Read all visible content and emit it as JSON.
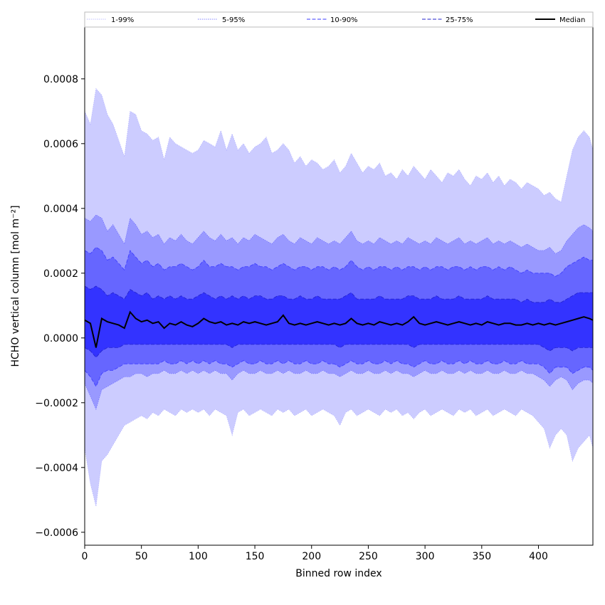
{
  "chart_data": {
    "type": "area",
    "title": "",
    "xlabel": "Binned row index",
    "ylabel": "HCHO vertical column [mol m⁻²]",
    "xlim": [
      0,
      448
    ],
    "ylim": [
      -0.00064,
      0.00096
    ],
    "xticks": [
      0,
      50,
      100,
      150,
      200,
      250,
      300,
      350,
      400
    ],
    "xtick_labels": [
      "0",
      "50",
      "100",
      "150",
      "200",
      "250",
      "300",
      "350",
      "400"
    ],
    "yticks": [
      -0.0006,
      -0.0004,
      -0.0002,
      0.0,
      0.0002,
      0.0004,
      0.0006,
      0.0008
    ],
    "ytick_labels": [
      "−0.0006",
      "−0.0004",
      "−0.0002",
      "0.0000",
      "0.0002",
      "0.0004",
      "0.0006",
      "0.0008"
    ],
    "grid": false,
    "legend_position": "top",
    "x": [
      0,
      5,
      10,
      15,
      20,
      25,
      30,
      35,
      40,
      45,
      50,
      55,
      60,
      65,
      70,
      75,
      80,
      85,
      90,
      95,
      100,
      105,
      110,
      115,
      120,
      125,
      130,
      135,
      140,
      145,
      150,
      155,
      160,
      165,
      170,
      175,
      180,
      185,
      190,
      195,
      200,
      205,
      210,
      215,
      220,
      225,
      230,
      235,
      240,
      245,
      250,
      255,
      260,
      265,
      270,
      275,
      280,
      285,
      290,
      295,
      300,
      305,
      310,
      315,
      320,
      325,
      330,
      335,
      340,
      345,
      350,
      355,
      360,
      365,
      370,
      375,
      380,
      385,
      390,
      395,
      400,
      405,
      410,
      415,
      420,
      425,
      430,
      435,
      440,
      445,
      448
    ],
    "series": [
      {
        "name": "1-99%",
        "color": "#ccccff",
        "line_color": "#b0b0ff",
        "line_style": "dotted",
        "upper": [
          0.0007,
          0.00066,
          0.00077,
          0.00075,
          0.00069,
          0.00066,
          0.00061,
          0.00056,
          0.0007,
          0.00069,
          0.00064,
          0.00063,
          0.00061,
          0.00062,
          0.00055,
          0.00062,
          0.0006,
          0.00059,
          0.00058,
          0.00057,
          0.00058,
          0.00061,
          0.0006,
          0.00059,
          0.00064,
          0.00058,
          0.00063,
          0.00058,
          0.0006,
          0.00057,
          0.00059,
          0.0006,
          0.00062,
          0.00057,
          0.00058,
          0.0006,
          0.00058,
          0.00054,
          0.00056,
          0.00053,
          0.00055,
          0.00054,
          0.00052,
          0.00053,
          0.00055,
          0.00051,
          0.00053,
          0.00057,
          0.00054,
          0.00051,
          0.00053,
          0.00052,
          0.00054,
          0.0005,
          0.00051,
          0.00049,
          0.00052,
          0.0005,
          0.00053,
          0.00051,
          0.00049,
          0.00052,
          0.0005,
          0.00048,
          0.00051,
          0.0005,
          0.00052,
          0.00049,
          0.00047,
          0.0005,
          0.00049,
          0.00051,
          0.00048,
          0.0005,
          0.00047,
          0.00049,
          0.00048,
          0.00046,
          0.00048,
          0.00047,
          0.00046,
          0.00044,
          0.00045,
          0.00043,
          0.00042,
          0.0005,
          0.00058,
          0.00062,
          0.00064,
          0.00062,
          0.00058
        ],
        "lower": [
          -0.00034,
          -0.00045,
          -0.00052,
          -0.00038,
          -0.00036,
          -0.00033,
          -0.0003,
          -0.00027,
          -0.00026,
          -0.00025,
          -0.00024,
          -0.00025,
          -0.00023,
          -0.00024,
          -0.00022,
          -0.00023,
          -0.00024,
          -0.00022,
          -0.00023,
          -0.00022,
          -0.00023,
          -0.00022,
          -0.00024,
          -0.00022,
          -0.00023,
          -0.00024,
          -0.0003,
          -0.00023,
          -0.00022,
          -0.00024,
          -0.00023,
          -0.00022,
          -0.00023,
          -0.00024,
          -0.00022,
          -0.00023,
          -0.00022,
          -0.00024,
          -0.00023,
          -0.00022,
          -0.00024,
          -0.00023,
          -0.00022,
          -0.00023,
          -0.00024,
          -0.00027,
          -0.00023,
          -0.00022,
          -0.00024,
          -0.00023,
          -0.00022,
          -0.00023,
          -0.00024,
          -0.00022,
          -0.00023,
          -0.00022,
          -0.00024,
          -0.00023,
          -0.00025,
          -0.00023,
          -0.00022,
          -0.00024,
          -0.00023,
          -0.00022,
          -0.00023,
          -0.00024,
          -0.00022,
          -0.00023,
          -0.00022,
          -0.00024,
          -0.00023,
          -0.00022,
          -0.00024,
          -0.00023,
          -0.00022,
          -0.00023,
          -0.00024,
          -0.00022,
          -0.00023,
          -0.00024,
          -0.00026,
          -0.00028,
          -0.00034,
          -0.0003,
          -0.00028,
          -0.0003,
          -0.00038,
          -0.00034,
          -0.00032,
          -0.0003,
          -0.00034
        ]
      },
      {
        "name": "5-95%",
        "color": "#9999ff",
        "line_color": "#6a6aff",
        "line_style": "dotted",
        "upper": [
          0.00037,
          0.00036,
          0.00038,
          0.00037,
          0.00033,
          0.00035,
          0.00032,
          0.00029,
          0.00037,
          0.00035,
          0.00032,
          0.00033,
          0.00031,
          0.00032,
          0.00029,
          0.00031,
          0.0003,
          0.00032,
          0.0003,
          0.00029,
          0.00031,
          0.00033,
          0.00031,
          0.0003,
          0.00032,
          0.0003,
          0.00031,
          0.00029,
          0.00031,
          0.0003,
          0.00032,
          0.00031,
          0.0003,
          0.00029,
          0.00031,
          0.00032,
          0.0003,
          0.00029,
          0.00031,
          0.0003,
          0.00029,
          0.00031,
          0.0003,
          0.00029,
          0.0003,
          0.00029,
          0.00031,
          0.00033,
          0.0003,
          0.00029,
          0.0003,
          0.00029,
          0.00031,
          0.0003,
          0.00029,
          0.0003,
          0.00029,
          0.00031,
          0.0003,
          0.00029,
          0.0003,
          0.00029,
          0.00031,
          0.0003,
          0.00029,
          0.0003,
          0.00031,
          0.00029,
          0.0003,
          0.00029,
          0.0003,
          0.00031,
          0.00029,
          0.0003,
          0.00029,
          0.0003,
          0.00029,
          0.00028,
          0.00029,
          0.00028,
          0.00027,
          0.00027,
          0.00028,
          0.00026,
          0.00027,
          0.0003,
          0.00032,
          0.00034,
          0.00035,
          0.00034,
          0.00033
        ],
        "lower": [
          -0.00014,
          -0.00018,
          -0.00022,
          -0.00016,
          -0.00015,
          -0.00014,
          -0.00013,
          -0.00012,
          -0.00012,
          -0.00011,
          -0.00011,
          -0.00012,
          -0.00011,
          -0.00011,
          -0.0001,
          -0.00011,
          -0.00011,
          -0.0001,
          -0.00011,
          -0.0001,
          -0.00011,
          -0.0001,
          -0.00011,
          -0.0001,
          -0.00011,
          -0.00011,
          -0.00013,
          -0.00011,
          -0.0001,
          -0.00011,
          -0.00011,
          -0.0001,
          -0.00011,
          -0.00011,
          -0.0001,
          -0.00011,
          -0.0001,
          -0.00011,
          -0.00011,
          -0.0001,
          -0.00011,
          -0.00011,
          -0.0001,
          -0.00011,
          -0.00011,
          -0.00012,
          -0.00011,
          -0.0001,
          -0.00011,
          -0.00011,
          -0.0001,
          -0.00011,
          -0.00011,
          -0.0001,
          -0.00011,
          -0.0001,
          -0.00011,
          -0.00011,
          -0.00012,
          -0.00011,
          -0.0001,
          -0.00011,
          -0.00011,
          -0.0001,
          -0.00011,
          -0.00011,
          -0.0001,
          -0.00011,
          -0.0001,
          -0.00011,
          -0.00011,
          -0.0001,
          -0.00011,
          -0.00011,
          -0.0001,
          -0.00011,
          -0.00011,
          -0.0001,
          -0.00011,
          -0.00011,
          -0.00012,
          -0.00013,
          -0.00015,
          -0.00013,
          -0.00012,
          -0.00013,
          -0.00016,
          -0.00014,
          -0.00013,
          -0.00013,
          -0.00014
        ]
      },
      {
        "name": "10-90%",
        "color": "#6666ff",
        "line_color": "#3a3aff",
        "line_style": "dashed",
        "upper": [
          0.00027,
          0.00026,
          0.00028,
          0.00027,
          0.00024,
          0.00025,
          0.00023,
          0.00021,
          0.00027,
          0.00025,
          0.00023,
          0.00024,
          0.00022,
          0.00023,
          0.00021,
          0.00022,
          0.00022,
          0.00023,
          0.00022,
          0.00021,
          0.00022,
          0.00024,
          0.00022,
          0.00022,
          0.00023,
          0.00022,
          0.00022,
          0.00021,
          0.00022,
          0.00022,
          0.00023,
          0.00022,
          0.00022,
          0.00021,
          0.00022,
          0.00023,
          0.00022,
          0.00021,
          0.00022,
          0.00022,
          0.00021,
          0.00022,
          0.00022,
          0.00021,
          0.00022,
          0.00021,
          0.00022,
          0.00024,
          0.00022,
          0.00021,
          0.00022,
          0.00021,
          0.00022,
          0.00022,
          0.00021,
          0.00022,
          0.00021,
          0.00022,
          0.00022,
          0.00021,
          0.00022,
          0.00021,
          0.00022,
          0.00022,
          0.00021,
          0.00022,
          0.00022,
          0.00021,
          0.00022,
          0.00021,
          0.00022,
          0.00022,
          0.00021,
          0.00022,
          0.00021,
          0.00022,
          0.00021,
          0.0002,
          0.00021,
          0.0002,
          0.0002,
          0.0002,
          0.0002,
          0.00019,
          0.0002,
          0.00022,
          0.00023,
          0.00024,
          0.00025,
          0.00024,
          0.00024
        ],
        "lower": [
          -0.0001,
          -0.00012,
          -0.00015,
          -0.00011,
          -0.0001,
          -0.0001,
          -9e-05,
          -8e-05,
          -8e-05,
          -8e-05,
          -8e-05,
          -8e-05,
          -8e-05,
          -8e-05,
          -7e-05,
          -8e-05,
          -8e-05,
          -7e-05,
          -8e-05,
          -7e-05,
          -8e-05,
          -7e-05,
          -8e-05,
          -7e-05,
          -8e-05,
          -8e-05,
          -9e-05,
          -8e-05,
          -7e-05,
          -8e-05,
          -8e-05,
          -7e-05,
          -8e-05,
          -8e-05,
          -7e-05,
          -8e-05,
          -7e-05,
          -8e-05,
          -8e-05,
          -7e-05,
          -8e-05,
          -8e-05,
          -7e-05,
          -8e-05,
          -8e-05,
          -9e-05,
          -8e-05,
          -7e-05,
          -8e-05,
          -8e-05,
          -7e-05,
          -8e-05,
          -8e-05,
          -7e-05,
          -8e-05,
          -7e-05,
          -8e-05,
          -8e-05,
          -9e-05,
          -8e-05,
          -7e-05,
          -8e-05,
          -8e-05,
          -7e-05,
          -8e-05,
          -8e-05,
          -7e-05,
          -8e-05,
          -7e-05,
          -8e-05,
          -8e-05,
          -7e-05,
          -8e-05,
          -8e-05,
          -7e-05,
          -8e-05,
          -8e-05,
          -7e-05,
          -8e-05,
          -8e-05,
          -8e-05,
          -9e-05,
          -0.00011,
          -9e-05,
          -9e-05,
          -9e-05,
          -0.00011,
          -0.0001,
          -9e-05,
          -9e-05,
          -0.0001
        ]
      },
      {
        "name": "25-75%",
        "color": "#3333ff",
        "line_color": "#2222cc",
        "line_style": "dashed",
        "upper": [
          0.00016,
          0.00015,
          0.00016,
          0.00015,
          0.00013,
          0.00014,
          0.00013,
          0.00012,
          0.00015,
          0.00014,
          0.00013,
          0.00014,
          0.00012,
          0.00013,
          0.00012,
          0.00013,
          0.00012,
          0.00013,
          0.00012,
          0.00012,
          0.00013,
          0.00014,
          0.00013,
          0.00012,
          0.00013,
          0.00012,
          0.00013,
          0.00012,
          0.00013,
          0.00012,
          0.00013,
          0.00013,
          0.00012,
          0.00012,
          0.00013,
          0.00013,
          0.00012,
          0.00012,
          0.00013,
          0.00012,
          0.00012,
          0.00013,
          0.00012,
          0.00012,
          0.00012,
          0.00012,
          0.00013,
          0.00014,
          0.00012,
          0.00012,
          0.00012,
          0.00012,
          0.00013,
          0.00012,
          0.00012,
          0.00012,
          0.00012,
          0.00013,
          0.00013,
          0.00012,
          0.00012,
          0.00012,
          0.00013,
          0.00012,
          0.00012,
          0.00012,
          0.00013,
          0.00012,
          0.00012,
          0.00012,
          0.00012,
          0.00013,
          0.00012,
          0.00012,
          0.00012,
          0.00012,
          0.00012,
          0.00011,
          0.00012,
          0.00011,
          0.00011,
          0.00011,
          0.00012,
          0.00011,
          0.00011,
          0.00012,
          0.00013,
          0.00014,
          0.00014,
          0.00014,
          0.00014
        ],
        "lower": [
          -3e-05,
          -4e-05,
          -6e-05,
          -4e-05,
          -3e-05,
          -3e-05,
          -3e-05,
          -2e-05,
          -2e-05,
          -2e-05,
          -2e-05,
          -2e-05,
          -2e-05,
          -2e-05,
          -2e-05,
          -2e-05,
          -2e-05,
          -2e-05,
          -2e-05,
          -2e-05,
          -2e-05,
          -2e-05,
          -2e-05,
          -2e-05,
          -2e-05,
          -2e-05,
          -3e-05,
          -2e-05,
          -2e-05,
          -2e-05,
          -2e-05,
          -2e-05,
          -2e-05,
          -2e-05,
          -2e-05,
          -2e-05,
          -2e-05,
          -2e-05,
          -2e-05,
          -2e-05,
          -2e-05,
          -2e-05,
          -2e-05,
          -2e-05,
          -2e-05,
          -3e-05,
          -2e-05,
          -2e-05,
          -2e-05,
          -2e-05,
          -2e-05,
          -2e-05,
          -2e-05,
          -2e-05,
          -2e-05,
          -2e-05,
          -2e-05,
          -2e-05,
          -3e-05,
          -2e-05,
          -2e-05,
          -2e-05,
          -2e-05,
          -2e-05,
          -2e-05,
          -2e-05,
          -2e-05,
          -2e-05,
          -2e-05,
          -2e-05,
          -2e-05,
          -2e-05,
          -2e-05,
          -2e-05,
          -2e-05,
          -2e-05,
          -2e-05,
          -2e-05,
          -2e-05,
          -2e-05,
          -2e-05,
          -3e-05,
          -4e-05,
          -3e-05,
          -3e-05,
          -3e-05,
          -4e-05,
          -3e-05,
          -3e-05,
          -3e-05,
          -3e-05
        ]
      },
      {
        "name": "Median",
        "color": "#000000",
        "values": [
          5.5e-05,
          4.5e-05,
          -3e-05,
          6e-05,
          5e-05,
          4.5e-05,
          4e-05,
          3e-05,
          8e-05,
          6e-05,
          5e-05,
          5.5e-05,
          4.5e-05,
          5e-05,
          3e-05,
          4.5e-05,
          4e-05,
          5e-05,
          4e-05,
          3.5e-05,
          4.5e-05,
          6e-05,
          5e-05,
          4.5e-05,
          5e-05,
          4e-05,
          4.5e-05,
          4e-05,
          5e-05,
          4.5e-05,
          5e-05,
          4.5e-05,
          4e-05,
          4.5e-05,
          5e-05,
          7e-05,
          4.5e-05,
          4e-05,
          4.5e-05,
          4e-05,
          4.5e-05,
          5e-05,
          4.5e-05,
          4e-05,
          4.5e-05,
          4e-05,
          4.5e-05,
          6e-05,
          4.5e-05,
          4e-05,
          4.5e-05,
          4e-05,
          5e-05,
          4.5e-05,
          4e-05,
          4.5e-05,
          4e-05,
          5e-05,
          6.5e-05,
          4.5e-05,
          4e-05,
          4.5e-05,
          5e-05,
          4.5e-05,
          4e-05,
          4.5e-05,
          5e-05,
          4.5e-05,
          4e-05,
          4.5e-05,
          4e-05,
          5e-05,
          4.5e-05,
          4e-05,
          4.5e-05,
          4.5e-05,
          4e-05,
          4e-05,
          4.5e-05,
          4e-05,
          4.5e-05,
          4e-05,
          4.5e-05,
          4e-05,
          4.5e-05,
          5e-05,
          5.5e-05,
          6e-05,
          6.5e-05,
          6e-05,
          5.5e-05
        ]
      }
    ]
  }
}
